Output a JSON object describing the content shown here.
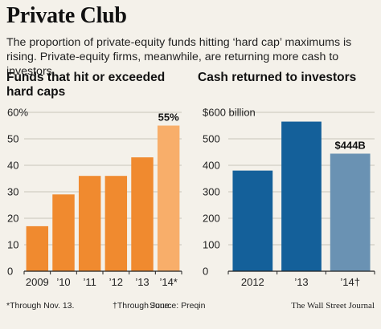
{
  "header": {
    "title": "Private Club",
    "subtitle": "The proportion of private-equity funds hitting ‘hard cap’ maximums is rising. Private-equity firms, meanwhile, are returning more cash to investors."
  },
  "chart_data": [
    {
      "type": "bar",
      "title": "Funds that hit or exceeded hard caps",
      "categories": [
        "2009",
        "’10",
        "’11",
        "’12",
        "’13",
        "’14*"
      ],
      "values": [
        17,
        29,
        36,
        36,
        43,
        55
      ],
      "ylim": [
        0,
        60
      ],
      "yticks": [
        "0",
        "10",
        "20",
        "30",
        "40",
        "50",
        "60%"
      ],
      "data_labels": [
        {
          "category": "’14*",
          "text": "55%"
        }
      ],
      "grid": true,
      "colors": [
        "#f08a2f",
        "#f08a2f",
        "#f08a2f",
        "#f08a2f",
        "#f08a2f",
        "#f8ae6a"
      ]
    },
    {
      "type": "bar",
      "title": "Cash returned to investors",
      "categories": [
        "2012",
        "’13",
        "’14†"
      ],
      "values": [
        380,
        565,
        444
      ],
      "ylim": [
        0,
        600
      ],
      "yticks": [
        "0",
        "100",
        "200",
        "300",
        "400",
        "500",
        "$600 billion"
      ],
      "data_labels": [
        {
          "category": "’14†",
          "text": "$444B"
        }
      ],
      "grid": true,
      "colors": [
        "#14609a",
        "#14609a",
        "#6a92b3"
      ]
    }
  ],
  "footer": {
    "note1": "*Through Nov. 13.",
    "note2": "†Through June.",
    "source": "Source: Preqin",
    "brand": "The Wall Street Journal"
  }
}
